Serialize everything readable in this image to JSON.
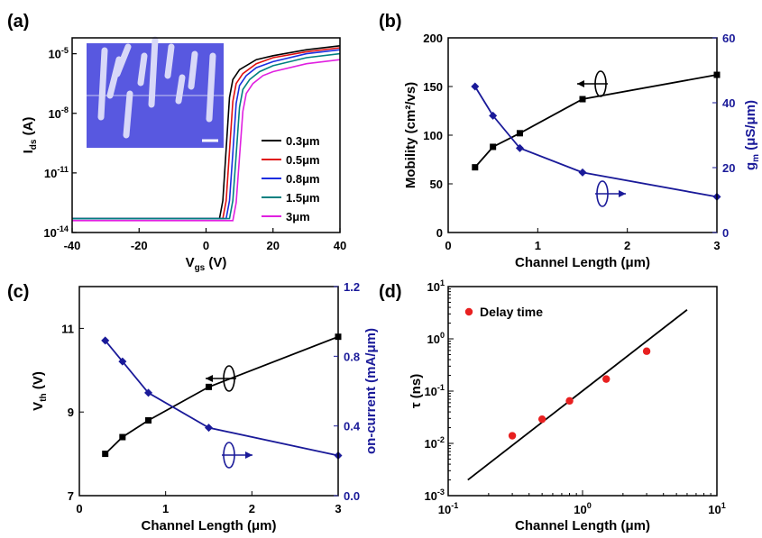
{
  "chart_data": [
    {
      "panel": "(a)",
      "type": "line",
      "xlabel": "V",
      "xlabel_sub": "gs",
      "xlabel_unit": " (V)",
      "ylabel": "I",
      "ylabel_sub": "ds",
      "ylabel_unit": " (A)",
      "xlim": [
        -40,
        40
      ],
      "xticks": [
        "-40",
        "-20",
        "0",
        "20",
        "40"
      ],
      "ylim_log10": [
        -14,
        -4.2
      ],
      "yticks": [
        {
          "base": "10",
          "exp": "-5",
          "e": -5
        },
        {
          "base": "10",
          "exp": "-8",
          "e": -8
        },
        {
          "base": "10",
          "exp": "-11",
          "e": -11
        },
        {
          "base": "10",
          "exp": "-14",
          "e": -14
        }
      ],
      "legend_position": "right",
      "inset": "micrograph of channel electrodes with scale bar",
      "series": [
        {
          "name": "0.3μm",
          "color": "#000000",
          "x": [
            -40,
            4,
            5,
            6,
            7,
            8,
            10,
            15,
            20,
            30,
            40
          ],
          "y_log10": [
            -13.3,
            -13.3,
            -12.4,
            -9.8,
            -7.2,
            -6.3,
            -5.8,
            -5.3,
            -5.1,
            -4.8,
            -4.6
          ]
        },
        {
          "name": "0.5μm",
          "color": "#e01010",
          "x": [
            -40,
            5,
            6,
            7,
            8,
            9,
            11,
            15,
            20,
            30,
            40
          ],
          "y_log10": [
            -13.3,
            -13.3,
            -12.4,
            -9.9,
            -7.4,
            -6.5,
            -6.0,
            -5.5,
            -5.2,
            -4.9,
            -4.7
          ]
        },
        {
          "name": "0.8μm",
          "color": "#1a2ee0",
          "x": [
            -40,
            6,
            7,
            8,
            9,
            10,
            12,
            15,
            20,
            30,
            40
          ],
          "y_log10": [
            -13.3,
            -13.3,
            -12.4,
            -10.0,
            -7.5,
            -6.6,
            -6.1,
            -5.7,
            -5.4,
            -5.0,
            -4.8
          ]
        },
        {
          "name": "1.5μm",
          "color": "#008080",
          "x": [
            -40,
            7,
            8,
            9,
            10,
            11,
            13,
            16,
            20,
            30,
            40
          ],
          "y_log10": [
            -13.3,
            -13.3,
            -12.4,
            -10.1,
            -7.7,
            -6.8,
            -6.3,
            -5.9,
            -5.6,
            -5.2,
            -5.0
          ]
        },
        {
          "name": "3μm",
          "color": "#e020e0",
          "x": [
            -40,
            8,
            9,
            10,
            11,
            12,
            14,
            17,
            20,
            30,
            40
          ],
          "y_log10": [
            -13.4,
            -13.4,
            -12.5,
            -10.2,
            -7.9,
            -7.0,
            -6.5,
            -6.1,
            -5.9,
            -5.5,
            -5.3
          ]
        }
      ]
    },
    {
      "panel": "(b)",
      "type": "line",
      "xlabel": "Channel Length (μm)",
      "ylabel_left": "Mobility (cm²/vs)",
      "ylabel_right": "g",
      "ylabel_right_sub": "m",
      "ylabel_right_unit": " (μS/μm)",
      "xlim": [
        0,
        3
      ],
      "xticks": [
        "0",
        "1",
        "2",
        "3"
      ],
      "ylim_left": [
        0,
        200
      ],
      "yticks_left": [
        "0",
        "50",
        "100",
        "150",
        "200"
      ],
      "ylim_right": [
        0,
        60
      ],
      "yticks_right": [
        "0",
        "20",
        "40",
        "60"
      ],
      "series": [
        {
          "axis": "left",
          "color": "#000000",
          "marker": "square",
          "x": [
            0.3,
            0.5,
            0.8,
            1.5,
            3.0
          ],
          "y": [
            67,
            88,
            102,
            137,
            162
          ]
        },
        {
          "axis": "right",
          "color": "#1a1a99",
          "marker": "diamond",
          "x": [
            0.3,
            0.5,
            0.8,
            1.5,
            3.0
          ],
          "y": [
            45,
            36,
            26,
            18.5,
            11
          ]
        }
      ]
    },
    {
      "panel": "(c)",
      "type": "line",
      "xlabel": "Channel Length (μm)",
      "ylabel_left": "V",
      "ylabel_left_sub": "th",
      "ylabel_left_unit": " (V)",
      "ylabel_right": "on-current (mA/μm)",
      "xlim": [
        0,
        3
      ],
      "xticks": [
        "0",
        "1",
        "2",
        "3"
      ],
      "ylim_left": [
        7,
        12
      ],
      "yticks_left": [
        "7",
        "9",
        "11"
      ],
      "ylim_right": [
        0,
        1.2
      ],
      "yticks_right": [
        "0.0",
        "0.4",
        "0.8",
        "1.2"
      ],
      "series": [
        {
          "axis": "left",
          "color": "#000000",
          "marker": "square",
          "x": [
            0.3,
            0.5,
            0.8,
            1.5,
            3.0
          ],
          "y": [
            8.0,
            8.4,
            8.8,
            9.6,
            10.8
          ]
        },
        {
          "axis": "right",
          "color": "#1a1a99",
          "marker": "diamond",
          "x": [
            0.3,
            0.5,
            0.8,
            1.5,
            3.0
          ],
          "y": [
            0.89,
            0.77,
            0.59,
            0.39,
            0.23
          ]
        }
      ]
    },
    {
      "panel": "(d)",
      "type": "scatter",
      "xlabel": "Channel Length (μm)",
      "ylabel": "τ (ns)",
      "xscale": "log",
      "yscale": "log",
      "xlim": [
        0.1,
        10
      ],
      "ylim": [
        0.001,
        10
      ],
      "xticks": [
        {
          "base": "10",
          "exp": "-1",
          "e": -1
        },
        {
          "base": "10",
          "exp": "0",
          "e": 0
        },
        {
          "base": "10",
          "exp": "1",
          "e": 1
        }
      ],
      "yticks": [
        {
          "base": "10",
          "exp": "-3",
          "e": -3
        },
        {
          "base": "10",
          "exp": "-2",
          "e": -2
        },
        {
          "base": "10",
          "exp": "-1",
          "e": -1
        },
        {
          "base": "10",
          "exp": "0",
          "e": 0
        },
        {
          "base": "10",
          "exp": "1",
          "e": 1
        }
      ],
      "legend_position": "top-left",
      "series": [
        {
          "name": "Delay time",
          "color": "#e82020",
          "marker": "circle",
          "x": [
            0.3,
            0.5,
            0.8,
            1.5,
            3.0
          ],
          "y": [
            0.014,
            0.029,
            0.065,
            0.17,
            0.58
          ]
        }
      ],
      "fit_line": {
        "color": "#000000",
        "x": [
          0.14,
          6.0
        ],
        "y": [
          0.002,
          3.6
        ]
      }
    }
  ]
}
